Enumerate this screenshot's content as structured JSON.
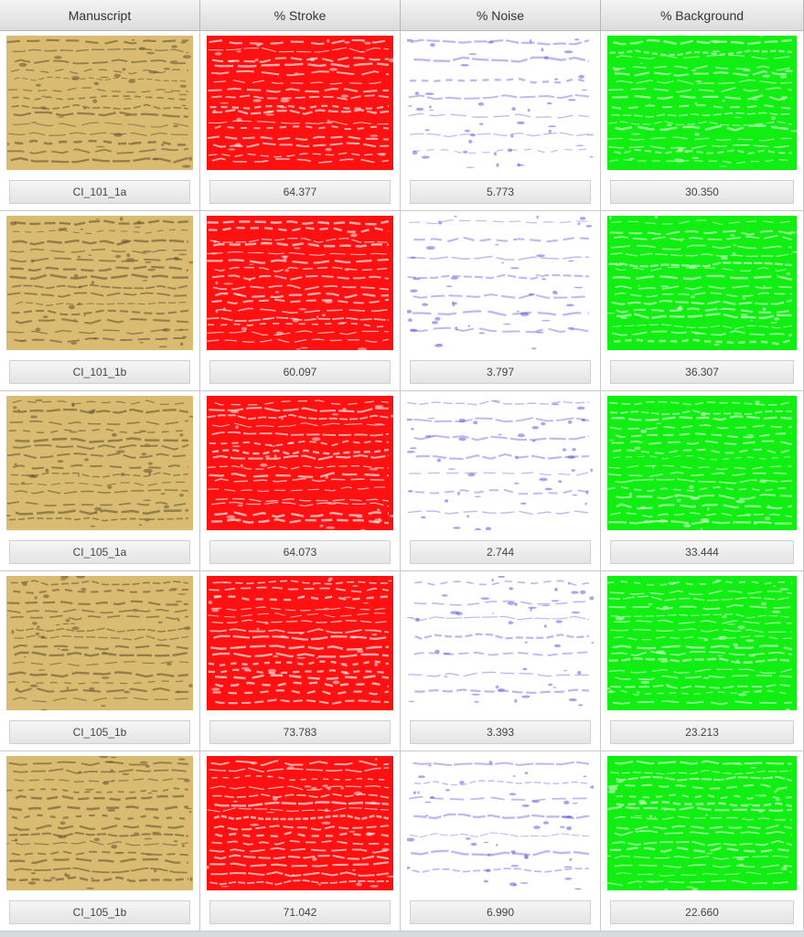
{
  "headers": [
    "Manuscript",
    "% Stroke",
    "% Noise",
    "% Background"
  ],
  "colors": {
    "parchment": "#d9bb72",
    "ink": "#5a4a2a",
    "stroke": "#ff1111",
    "noise": "#3b3bd6",
    "background": "#11ee11"
  },
  "rows": [
    {
      "id": "r1",
      "values": [
        "CI_101_1a",
        "64.377",
        "5.773",
        "30.350"
      ]
    },
    {
      "id": "r2",
      "values": [
        "CI_101_1b",
        "60.097",
        "3.797",
        "36.307"
      ]
    },
    {
      "id": "r3",
      "values": [
        "CI_105_1a",
        "64.073",
        "2.744",
        "33.444"
      ]
    },
    {
      "id": "r4",
      "values": [
        "CI_105_1b",
        "73.783",
        "3.393",
        "23.213"
      ]
    },
    {
      "id": "r5",
      "values": [
        "CI_105_1b",
        "71.042",
        "6.990",
        "22.660"
      ]
    }
  ]
}
